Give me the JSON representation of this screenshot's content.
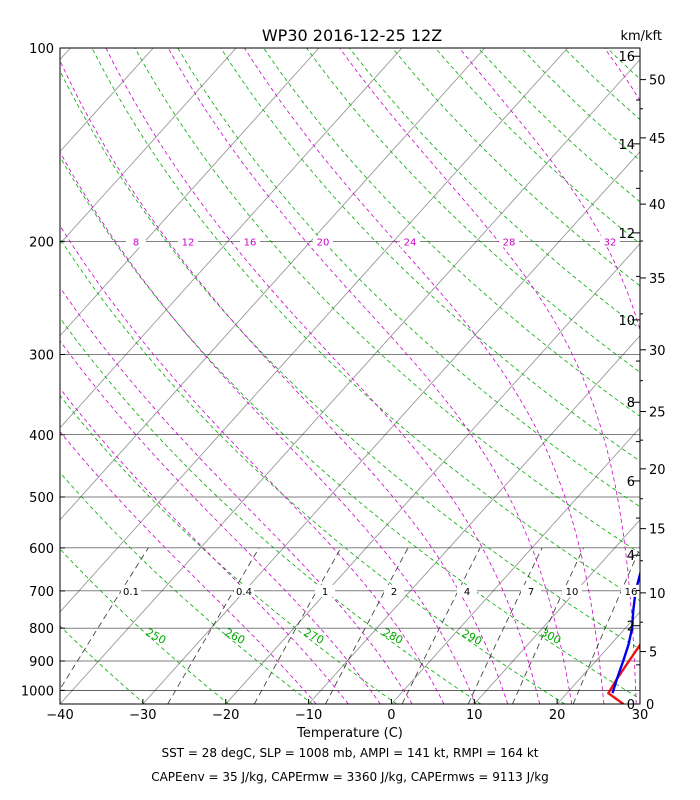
{
  "chart_data": {
    "type": "line",
    "title": "WP30 2016-12-25 12Z",
    "xlabel": "Temperature (C)",
    "ylabel": "",
    "right_axis_label": "km/kft",
    "xlim": [
      -40,
      30
    ],
    "ylim": [
      1050,
      100
    ],
    "x_ticks": [
      -40,
      -30,
      -20,
      -10,
      0,
      10,
      20,
      30
    ],
    "x_tick_labels": [
      "−40",
      "−30",
      "−20",
      "−10",
      "0",
      "10",
      "20",
      "30"
    ],
    "pressure_levels": [
      100,
      200,
      300,
      400,
      500,
      600,
      700,
      800,
      900,
      1000
    ],
    "km_ticks": [
      {
        "label": "0",
        "p": 1050
      },
      {
        "label": "2",
        "p": 793
      },
      {
        "label": "4",
        "p": 616
      },
      {
        "label": "6",
        "p": 472
      },
      {
        "label": "8",
        "p": 356
      },
      {
        "label": "10",
        "p": 265
      },
      {
        "label": "12",
        "p": 194
      },
      {
        "label": "14",
        "p": 141
      },
      {
        "label": "16",
        "p": 103
      }
    ],
    "kft_ticks": [
      {
        "label": "5",
        "p": 870
      },
      {
        "label": "10",
        "p": 705
      },
      {
        "label": "15",
        "p": 560
      },
      {
        "label": "20",
        "p": 452
      },
      {
        "label": "25",
        "p": 368
      },
      {
        "label": "30",
        "p": 295
      },
      {
        "label": "35",
        "p": 228
      },
      {
        "label": "40",
        "p": 175
      },
      {
        "label": "45",
        "p": 138
      },
      {
        "label": "50",
        "p": 112
      }
    ],
    "series": [
      {
        "name": "Temperature",
        "color": "#ee1111",
        "points": [
          [
            28.0,
            1050
          ],
          [
            25.0,
            1010
          ],
          [
            24.5,
            960
          ],
          [
            24.0,
            900
          ],
          [
            23.6,
            850
          ],
          [
            23.2,
            800
          ],
          [
            22.5,
            750
          ],
          [
            21.8,
            700
          ],
          [
            20.5,
            650
          ],
          [
            19.5,
            600
          ],
          [
            18.3,
            550
          ],
          [
            17.2,
            500
          ],
          [
            15.8,
            450
          ],
          [
            14.0,
            400
          ],
          [
            11.8,
            350
          ],
          [
            9.0,
            300
          ],
          [
            6.2,
            260
          ],
          [
            3.0,
            220
          ],
          [
            0.5,
            200
          ],
          [
            -2.2,
            180
          ],
          [
            -5.5,
            160
          ],
          [
            -7.8,
            145
          ],
          [
            -9.3,
            130
          ],
          [
            -10.8,
            115
          ],
          [
            -10.5,
            100
          ]
        ]
      },
      {
        "name": "Dewpoint",
        "color": "#0000ee",
        "points": [
          [
            25.5,
            1010
          ],
          [
            24.5,
            960
          ],
          [
            23.3,
            900
          ],
          [
            22.2,
            850
          ],
          [
            20.8,
            800
          ],
          [
            19.0,
            750
          ],
          [
            17.2,
            700
          ],
          [
            15.6,
            650
          ],
          [
            14.6,
            600
          ],
          [
            13.5,
            550
          ],
          [
            12.2,
            500
          ],
          [
            10.3,
            450
          ],
          [
            7.8,
            400
          ],
          [
            5.0,
            350
          ],
          [
            1.8,
            300
          ],
          [
            -1.4,
            260
          ],
          [
            -3.5,
            230
          ],
          [
            -5.2,
            205
          ],
          [
            -7.0,
            185
          ],
          [
            -9.0,
            165
          ],
          [
            -10.8,
            150
          ],
          [
            -12.6,
            135
          ],
          [
            -14.2,
            120
          ],
          [
            -15.0,
            110
          ],
          [
            -15.3,
            100
          ]
        ]
      }
    ],
    "mixing_ratio_labels": [
      "0.1",
      "0.4",
      "1",
      "2",
      "4",
      "7",
      "10",
      "16"
    ],
    "mixing_ratio_values": [
      0.1,
      0.4,
      1,
      2,
      4,
      7,
      10,
      16
    ],
    "dry_adiabat_labels": [
      "250",
      "260",
      "270",
      "280",
      "290",
      "300"
    ],
    "moist_adiabat_labels": [
      "8",
      "12",
      "16",
      "20",
      "24",
      "28",
      "32"
    ],
    "footer_line1": "SST = 28 degC, SLP = 1008 mb, AMPI = 141 kt, RMPI = 164 kt",
    "footer_line2": "CAPEenv = 35 J/kg, CAPErmw = 3360 J/kg, CAPErmws = 9113 J/kg",
    "colors": {
      "isotherm": "#999999",
      "isobar": "#000000",
      "dry_adiabat": "#00aa00",
      "moist_adiabat": "#cc00cc",
      "mixing_ratio": "#333333"
    }
  }
}
